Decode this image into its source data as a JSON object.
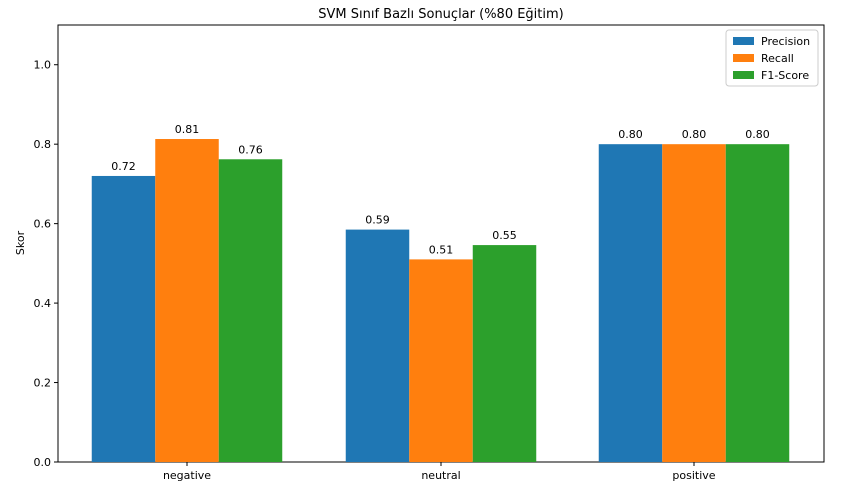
{
  "chart_data": {
    "type": "bar",
    "title": "SVM Sınıf Bazlı Sonuçlar (%80 Eğitim)",
    "xlabel": "",
    "ylabel": "Skor",
    "categories": [
      "negative",
      "neutral",
      "positive"
    ],
    "series": [
      {
        "name": "Precision",
        "values": [
          0.72,
          0.585,
          0.8
        ],
        "labels": [
          "0.72",
          "0.59",
          "0.80"
        ],
        "color": "#1f77b4"
      },
      {
        "name": "Recall",
        "values": [
          0.813,
          0.51,
          0.8
        ],
        "labels": [
          "0.81",
          "0.51",
          "0.80"
        ],
        "color": "#ff7f0e"
      },
      {
        "name": "F1-Score",
        "values": [
          0.762,
          0.546,
          0.8
        ],
        "labels": [
          "0.76",
          "0.55",
          "0.80"
        ],
        "color": "#2ca02c"
      }
    ],
    "ylim": [
      0,
      1.1
    ],
    "yticks": [
      0.0,
      0.2,
      0.4,
      0.6,
      0.8,
      1.0
    ],
    "ytick_labels": [
      "0.0",
      "0.2",
      "0.4",
      "0.6",
      "0.8",
      "1.0"
    ],
    "grid": false,
    "legend_position": "top-right"
  }
}
